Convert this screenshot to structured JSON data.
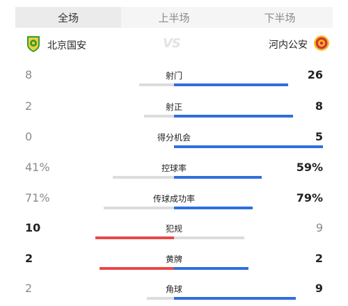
{
  "tabs": [
    {
      "label": "全场",
      "active": true
    },
    {
      "label": "上半场",
      "active": false
    },
    {
      "label": "下半场",
      "active": false
    }
  ],
  "teams": {
    "home": {
      "name": "北京国安",
      "icon": "beijing-guoan-logo"
    },
    "away": {
      "name": "河内公安",
      "icon": "hanoi-police-logo"
    },
    "vs": "VS"
  },
  "colors": {
    "blue": "#2f6fde",
    "red": "#e94848",
    "gray_bar": "#dcdcdc",
    "track_left": "#e6e6e6",
    "track_right": "#d9e5f7"
  },
  "stats": [
    {
      "label": "射门",
      "left": "8",
      "right": "26",
      "left_value": 8,
      "right_value": 26,
      "leader": "right"
    },
    {
      "label": "射正",
      "left": "2",
      "right": "8",
      "left_value": 2,
      "right_value": 8,
      "leader": "right"
    },
    {
      "label": "得分机会",
      "left": "0",
      "right": "5",
      "left_value": 0,
      "right_value": 5,
      "leader": "right"
    },
    {
      "label": "控球率",
      "left": "41%",
      "right": "59%",
      "left_value": 41,
      "right_value": 59,
      "leader": "right"
    },
    {
      "label": "传球成功率",
      "left": "71%",
      "right": "79%",
      "left_value": 71,
      "right_value": 79,
      "leader": "right"
    },
    {
      "label": "犯规",
      "left": "10",
      "right": "9",
      "left_value": 10,
      "right_value": 9,
      "leader": "left"
    },
    {
      "label": "黄牌",
      "left": "2",
      "right": "2",
      "left_value": 2,
      "right_value": 2,
      "leader": "both"
    },
    {
      "label": "角球",
      "left": "2",
      "right": "9",
      "left_value": 2,
      "right_value": 9,
      "leader": "right"
    }
  ]
}
